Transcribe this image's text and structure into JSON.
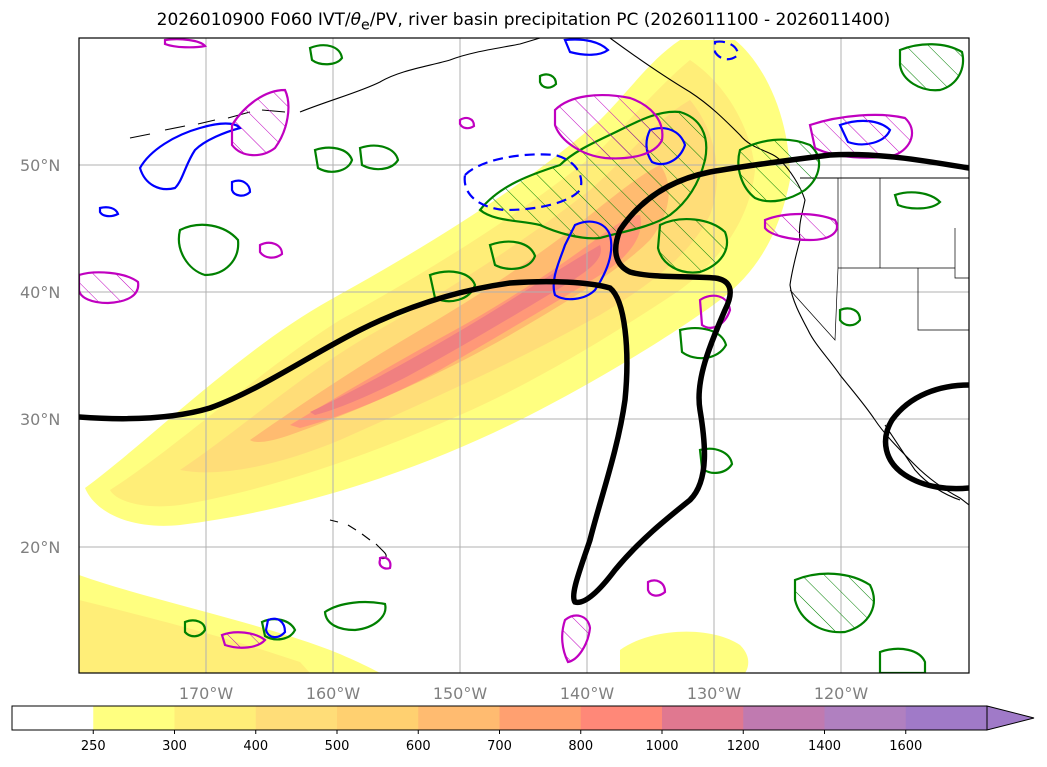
{
  "title": {
    "prefix": "2026010900 F060 IVT/",
    "theta": "θ",
    "sub": "e",
    "suffix": "/PV, river basin precipitation PC (2026011100 - 2026011400)"
  },
  "map": {
    "lat_labels": [
      "50°N",
      "40°N",
      "30°N",
      "20°N"
    ],
    "lon_labels": [
      "170°W",
      "160°W",
      "150°W",
      "140°W",
      "130°W",
      "120°W"
    ]
  },
  "colorbar": {
    "levels": [
      "250",
      "300",
      "400",
      "500",
      "600",
      "700",
      "800",
      "1000",
      "1200",
      "1400",
      "1600"
    ],
    "colors": [
      "#ffffff",
      "#ffff80",
      "#ffee78",
      "#ffdd78",
      "#ffd070",
      "#ffbb70",
      "#ffa070",
      "#ff8878",
      "#e07890",
      "#c07ab0",
      "#b080c0",
      "#a07ac8"
    ],
    "extend": "max"
  },
  "colors": {
    "ivt_low": "#ffff80",
    "ivt_high": "#ff8878",
    "theta_e_line": "#000000",
    "pv_blue": "#0000ff",
    "pv_magenta": "#c000c0",
    "precip_green": "#008000",
    "grid": "#b0b0b0"
  }
}
